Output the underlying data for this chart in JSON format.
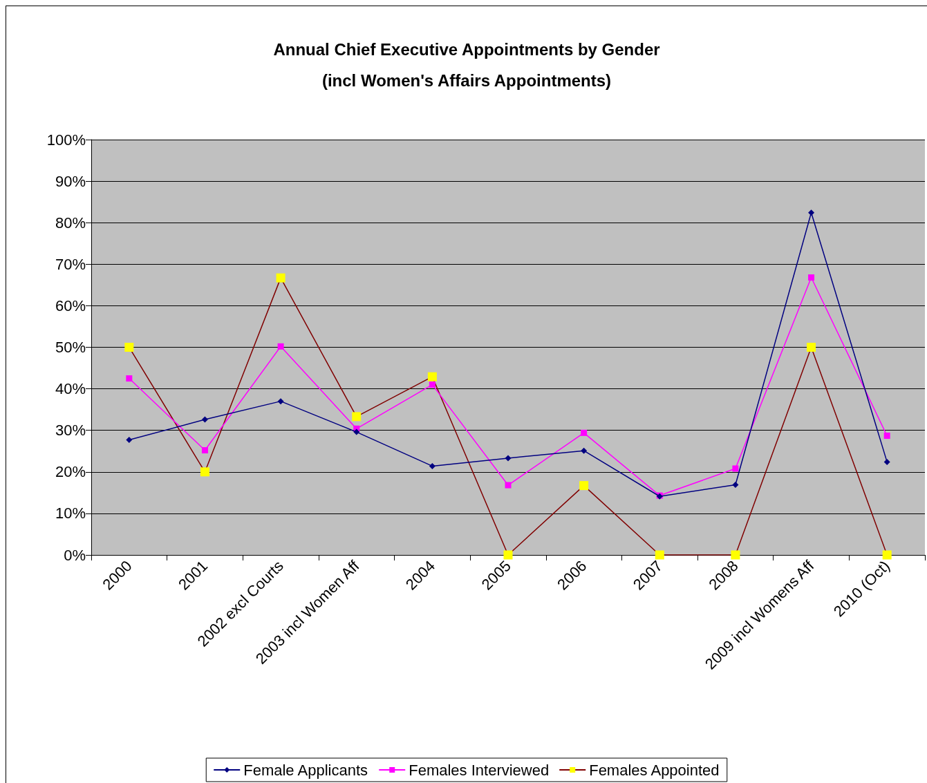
{
  "chart_data": {
    "type": "line",
    "title": "Annual Chief Executive Appointments by Gender\n(incl Women's Affairs Appointments)",
    "categories": [
      "2000",
      "2001",
      "2002 excl Courts",
      "2003 incl Women Aff",
      "2004",
      "2005",
      "2006",
      "2007",
      "2008",
      "2009 incl Womens Aff",
      "2010 (Oct)"
    ],
    "series": [
      {
        "name": "Female Applicants",
        "color": "#000080",
        "marker": "diamond",
        "values": [
          27.7,
          32.6,
          37.0,
          29.6,
          21.4,
          23.3,
          25.1,
          14.1,
          16.9,
          82.4,
          22.4
        ]
      },
      {
        "name": "Females Interviewed",
        "color": "#ff00ff",
        "marker": "square",
        "values": [
          42.5,
          25.2,
          50.2,
          30.4,
          41.0,
          16.8,
          29.4,
          14.3,
          20.8,
          66.8,
          28.7
        ]
      },
      {
        "name": "Females Appointed",
        "color": "#800000",
        "marker": "square",
        "colors": [
          "#ffff00",
          "#ffff00",
          "#ffff00",
          "#ffff00",
          "#ffff00",
          "#ffff00",
          "#ffff00",
          "#ffff00",
          "#ffff00",
          "#ffff00",
          "#ffff00"
        ],
        "values": [
          50,
          20,
          66.7,
          33.3,
          42.9,
          0,
          16.7,
          0,
          0,
          50,
          0
        ]
      }
    ],
    "ylim": [
      0,
      100
    ],
    "yticks": [
      {
        "value": 0,
        "label": "0%"
      },
      {
        "value": 10,
        "label": "10%"
      },
      {
        "value": 20,
        "label": "20%"
      },
      {
        "value": 30,
        "label": "30%"
      },
      {
        "value": 40,
        "label": "40%"
      },
      {
        "value": 50,
        "label": "50%"
      },
      {
        "value": 60,
        "label": "60%"
      },
      {
        "value": 70,
        "label": "70%"
      },
      {
        "value": 80,
        "label": "80%"
      },
      {
        "value": 90,
        "label": "90%"
      },
      {
        "value": 100,
        "label": "100%"
      }
    ],
    "grid": "y",
    "legend": "bottom",
    "line_style": "solid"
  }
}
